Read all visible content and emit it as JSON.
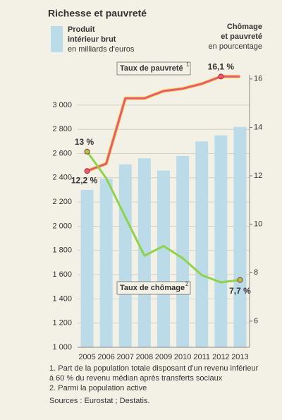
{
  "chart_data": {
    "type": "bar-line",
    "title": "Richesse et pauvreté",
    "legend_bar": [
      "Produit",
      "intérieur brut",
      "en milliards d'euros"
    ],
    "right_axis_title": [
      "Chômage",
      "et pauvreté",
      "en pourcentage"
    ],
    "categories": [
      "2005",
      "2006",
      "2007",
      "2008",
      "2009",
      "2010",
      "2011",
      "2012",
      "2013"
    ],
    "series": [
      {
        "name": "Produit intérieur brut",
        "type": "bar",
        "color": "#bcdbe9",
        "values": [
          2300,
          2390,
          2510,
          2560,
          2460,
          2580,
          2700,
          2750,
          2820
        ]
      },
      {
        "name": "Taux de pauvreté",
        "note": "1",
        "type": "line",
        "axis": "y2",
        "color": "#e8577c",
        "values": [
          12.2,
          12.5,
          15.2,
          15.2,
          15.5,
          15.6,
          15.8,
          16.1,
          16.1
        ],
        "value_labels": [
          "12,2 %",
          null,
          null,
          null,
          null,
          null,
          null,
          "16,1 %",
          null
        ]
      },
      {
        "name": "Taux de chômage",
        "note": "2",
        "type": "line",
        "axis": "y2",
        "color": "#8fd24c",
        "values": [
          13.0,
          11.9,
          10.3,
          8.7,
          9.1,
          8.6,
          7.9,
          7.6,
          7.7
        ],
        "value_labels": [
          "13 %",
          null,
          null,
          null,
          null,
          null,
          null,
          null,
          "7,7 %"
        ]
      }
    ],
    "ylim": [
      1000,
      3250
    ],
    "yticks": [
      {
        "value": 1000,
        "label": "1 000"
      },
      {
        "value": 1200,
        "label": "1 200"
      },
      {
        "value": 1400,
        "label": "1 400"
      },
      {
        "value": 1600,
        "label": "1 600"
      },
      {
        "value": 1800,
        "label": "1 800"
      },
      {
        "value": 2000,
        "label": "2 000"
      },
      {
        "value": 2200,
        "label": "2 200"
      },
      {
        "value": 2400,
        "label": "2 400"
      },
      {
        "value": 2600,
        "label": "2 600"
      },
      {
        "value": 2800,
        "label": "2 800"
      },
      {
        "value": 3000,
        "label": "3 000"
      }
    ],
    "y2lim": [
      4.92,
      16.17
    ],
    "y2ticks": [
      6,
      8,
      10,
      12,
      14,
      16
    ],
    "grid": true,
    "footnotes": [
      "1. Part de la population totale disposant d'un revenu inférieur",
      "à 60 % du revenu médian après transferts sociaux",
      "2. Parmi la population active"
    ],
    "sources": "Sources : Eurostat ; Destatis."
  }
}
